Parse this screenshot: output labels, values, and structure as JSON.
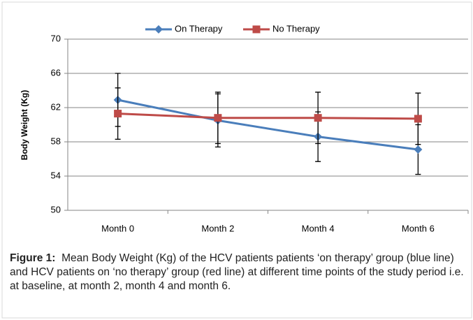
{
  "chart_data": {
    "type": "line",
    "y_label": "Body Weight (Kg)",
    "categories": [
      "Month 0",
      "Month 2",
      "Month 4",
      "Month 6"
    ],
    "series": [
      {
        "name": "On Therapy",
        "color": "#4a7ebb",
        "marker": "diamond",
        "values": [
          62.9,
          60.5,
          58.6,
          57.1
        ],
        "errors": [
          3.1,
          3.1,
          2.9,
          2.9
        ]
      },
      {
        "name": "No Therapy",
        "color": "#be4b48",
        "marker": "square",
        "values": [
          61.3,
          60.8,
          60.8,
          60.7
        ],
        "errors": [
          3.0,
          3.0,
          3.0,
          3.0
        ]
      }
    ],
    "ylim": [
      50,
      70
    ],
    "yticks": [
      50,
      54,
      58,
      62,
      66,
      70
    ],
    "grid": true,
    "legend": "top"
  },
  "caption": {
    "label": "Figure 1:",
    "text": "Mean Body Weight (Kg) of the HCV patients patients ‘on therapy’ group (blue line) and HCV patients on ‘no therapy’ group (red line) at different time points of the study period i.e. at baseline, at month 2, month 4 and month 6."
  }
}
